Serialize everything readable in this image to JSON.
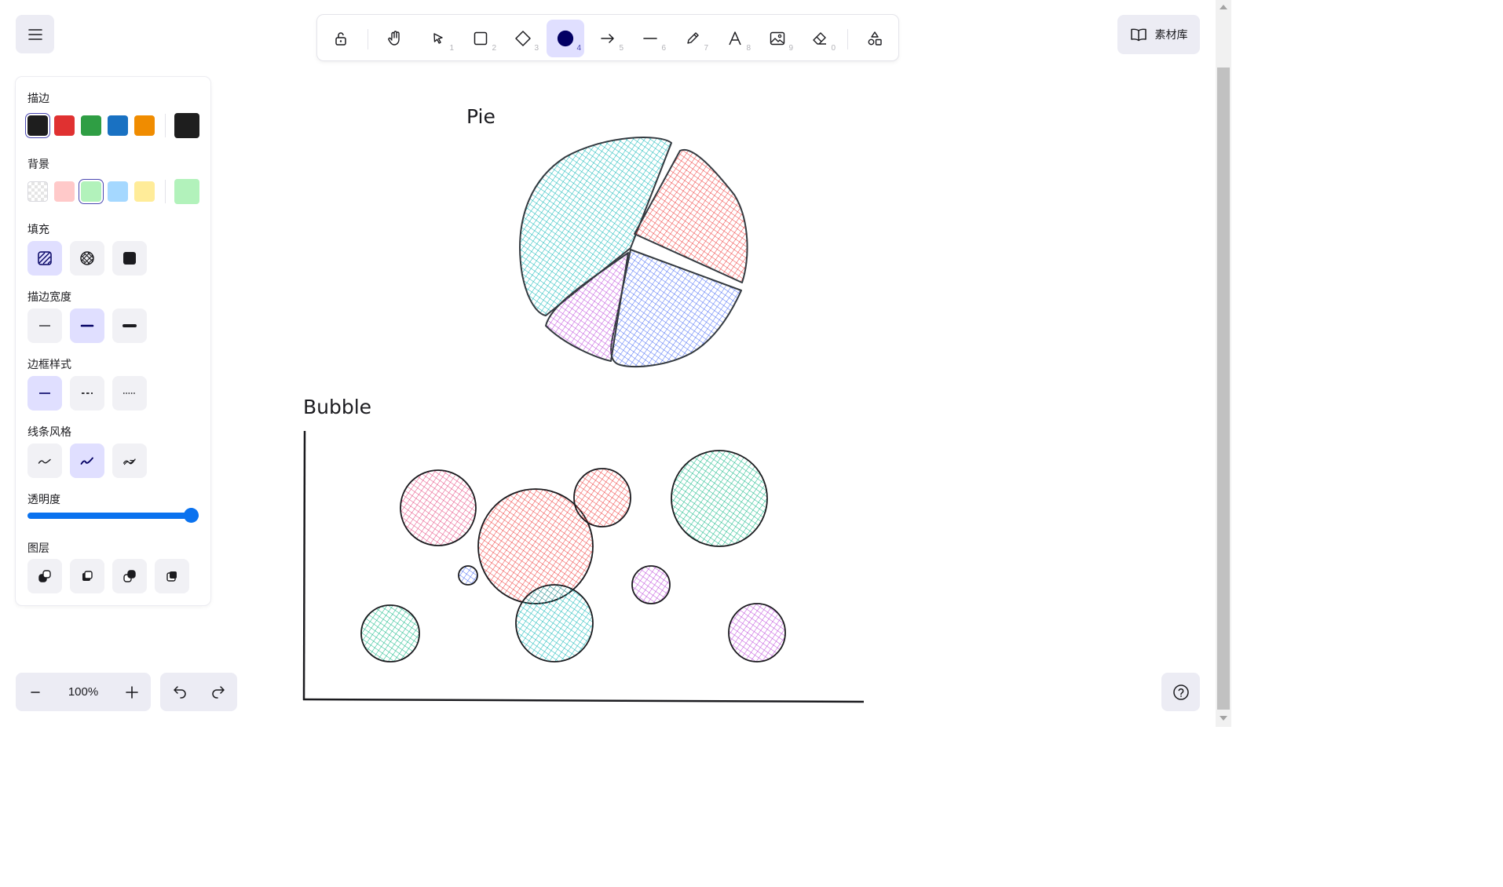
{
  "toolbar": {
    "tools": [
      {
        "name": "lock-tool",
        "num": ""
      },
      {
        "name": "hand-tool",
        "num": ""
      },
      {
        "name": "selection-tool",
        "num": "1"
      },
      {
        "name": "rectangle-tool",
        "num": "2"
      },
      {
        "name": "diamond-tool",
        "num": "3"
      },
      {
        "name": "ellipse-tool",
        "num": "4"
      },
      {
        "name": "arrow-tool",
        "num": "5"
      },
      {
        "name": "line-tool",
        "num": "6"
      },
      {
        "name": "pencil-tool",
        "num": "7"
      },
      {
        "name": "text-tool",
        "num": "8"
      },
      {
        "name": "image-tool",
        "num": "9"
      },
      {
        "name": "eraser-tool",
        "num": "0"
      },
      {
        "name": "more-shapes-tool",
        "num": ""
      }
    ],
    "active_tool": "ellipse-tool"
  },
  "library": {
    "label": "素材库"
  },
  "properties": {
    "stroke": {
      "label": "描边",
      "colors": [
        "#1e1e1e",
        "#e03131",
        "#2f9e44",
        "#1971c2",
        "#f08c00"
      ],
      "selected_color": "#1e1e1e"
    },
    "background": {
      "label": "背景",
      "colors": [
        "transparent",
        "#ffc9c9",
        "#b2f2bb",
        "#a5d8ff",
        "#ffec99"
      ],
      "selected_color": "#b2f2bb"
    },
    "fill": {
      "label": "填充",
      "options": [
        "hachure",
        "cross-hatch",
        "solid"
      ],
      "selected": "hachure"
    },
    "stroke_width": {
      "label": "描边宽度",
      "options": [
        "thin",
        "bold",
        "extra-bold"
      ],
      "selected": "bold"
    },
    "stroke_style": {
      "label": "边框样式",
      "options": [
        "solid",
        "dashed",
        "dotted"
      ],
      "selected": "solid"
    },
    "sloppiness": {
      "label": "线条风格",
      "options": [
        "architect",
        "artist",
        "cartoonist"
      ],
      "selected": "artist"
    },
    "opacity": {
      "label": "透明度",
      "value": 100
    },
    "layers": {
      "label": "图层",
      "options": [
        "send-to-back",
        "send-backward",
        "bring-forward",
        "bring-to-front"
      ]
    }
  },
  "footer": {
    "zoom": "100%"
  },
  "canvas": {
    "pie_title": "Pie",
    "bubble_title": "Bubble",
    "pie_slices": [
      {
        "color": "#12b8b8"
      },
      {
        "color": "#f03e3e"
      },
      {
        "color": "#4c6ef5"
      },
      {
        "color": "#be4bdb"
      }
    ],
    "bubbles": [
      {
        "color": "#e64980"
      },
      {
        "color": "#f03e3e"
      },
      {
        "color": "#f03e3e"
      },
      {
        "color": "#12b886"
      },
      {
        "color": "#4c6ef5"
      },
      {
        "color": "#be4bdb"
      },
      {
        "color": "#12b886"
      },
      {
        "color": "#12b8b8"
      },
      {
        "color": "#be4bdb"
      }
    ]
  }
}
